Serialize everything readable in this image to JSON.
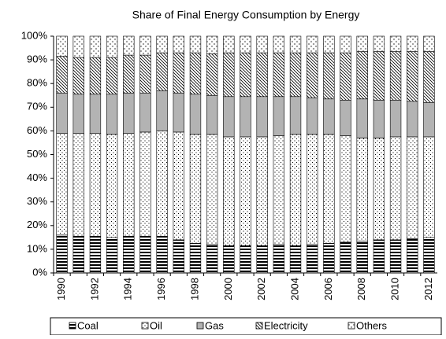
{
  "chart_data": {
    "type": "stacked_bar",
    "title": "Share of Final Energy Consumption by Energy",
    "categories": [
      "1990",
      null,
      "1992",
      null,
      "1994",
      null,
      "1996",
      null,
      "1998",
      null,
      "2000",
      null,
      "2002",
      null,
      "2004",
      null,
      "2006",
      null,
      "2008",
      null,
      "2010",
      null,
      "2012"
    ],
    "series": [
      {
        "name": "Coal",
        "color": "#000000",
        "pattern": "hlines",
        "values": [
          16,
          15.5,
          15.5,
          15,
          15.5,
          15.5,
          15.5,
          14,
          12.5,
          12,
          11.5,
          11.5,
          11.5,
          12,
          11.5,
          12,
          12.5,
          13,
          13.5,
          14,
          14,
          14.5,
          15
        ]
      },
      {
        "name": "Oil",
        "color": "#ffffff",
        "pattern": "dots",
        "values": [
          43,
          43.5,
          43.5,
          43.5,
          43.5,
          44,
          44.5,
          45.5,
          46,
          46.5,
          46,
          46,
          46,
          46,
          47,
          46.5,
          46,
          45,
          43.5,
          43,
          43.5,
          43,
          42.5
        ]
      },
      {
        "name": "Gas",
        "color": "#b3b3b3",
        "pattern": "solid",
        "values": [
          17,
          16.5,
          16.5,
          17,
          17,
          16.5,
          17,
          16.5,
          17,
          16.5,
          17,
          17,
          17,
          16.5,
          16,
          15.5,
          15,
          15,
          16.5,
          16,
          15.5,
          15,
          14.5
        ]
      },
      {
        "name": "Electricity",
        "color": "#ffffff",
        "pattern": "diag",
        "values": [
          15.5,
          15.5,
          15.5,
          15.5,
          16,
          16,
          16,
          17,
          17.5,
          17.5,
          18.5,
          18.5,
          18.5,
          18.5,
          18.5,
          19,
          19.5,
          20,
          20,
          20.5,
          20.5,
          21,
          21.5
        ]
      },
      {
        "name": "Others",
        "color": "#ffffff",
        "pattern": "cross",
        "values": [
          8.5,
          9,
          9,
          9,
          8,
          8,
          7,
          7,
          7,
          7.5,
          7,
          7,
          7,
          7,
          7,
          7,
          7,
          7,
          6.5,
          6.5,
          6.5,
          6.5,
          6.5
        ]
      }
    ],
    "ylim": [
      0,
      100
    ],
    "yticks": [
      {
        "value": 0,
        "label": "0%"
      },
      {
        "value": 10,
        "label": "10%"
      },
      {
        "value": 20,
        "label": "20%"
      },
      {
        "value": 30,
        "label": "30%"
      },
      {
        "value": 40,
        "label": "40%"
      },
      {
        "value": 50,
        "label": "50%"
      },
      {
        "value": 60,
        "label": "60%"
      },
      {
        "value": 70,
        "label": "70%"
      },
      {
        "value": 80,
        "label": "80%"
      },
      {
        "value": 90,
        "label": "90%"
      },
      {
        "value": 100,
        "label": "100%"
      }
    ],
    "grid": false,
    "legend": "bottom"
  }
}
